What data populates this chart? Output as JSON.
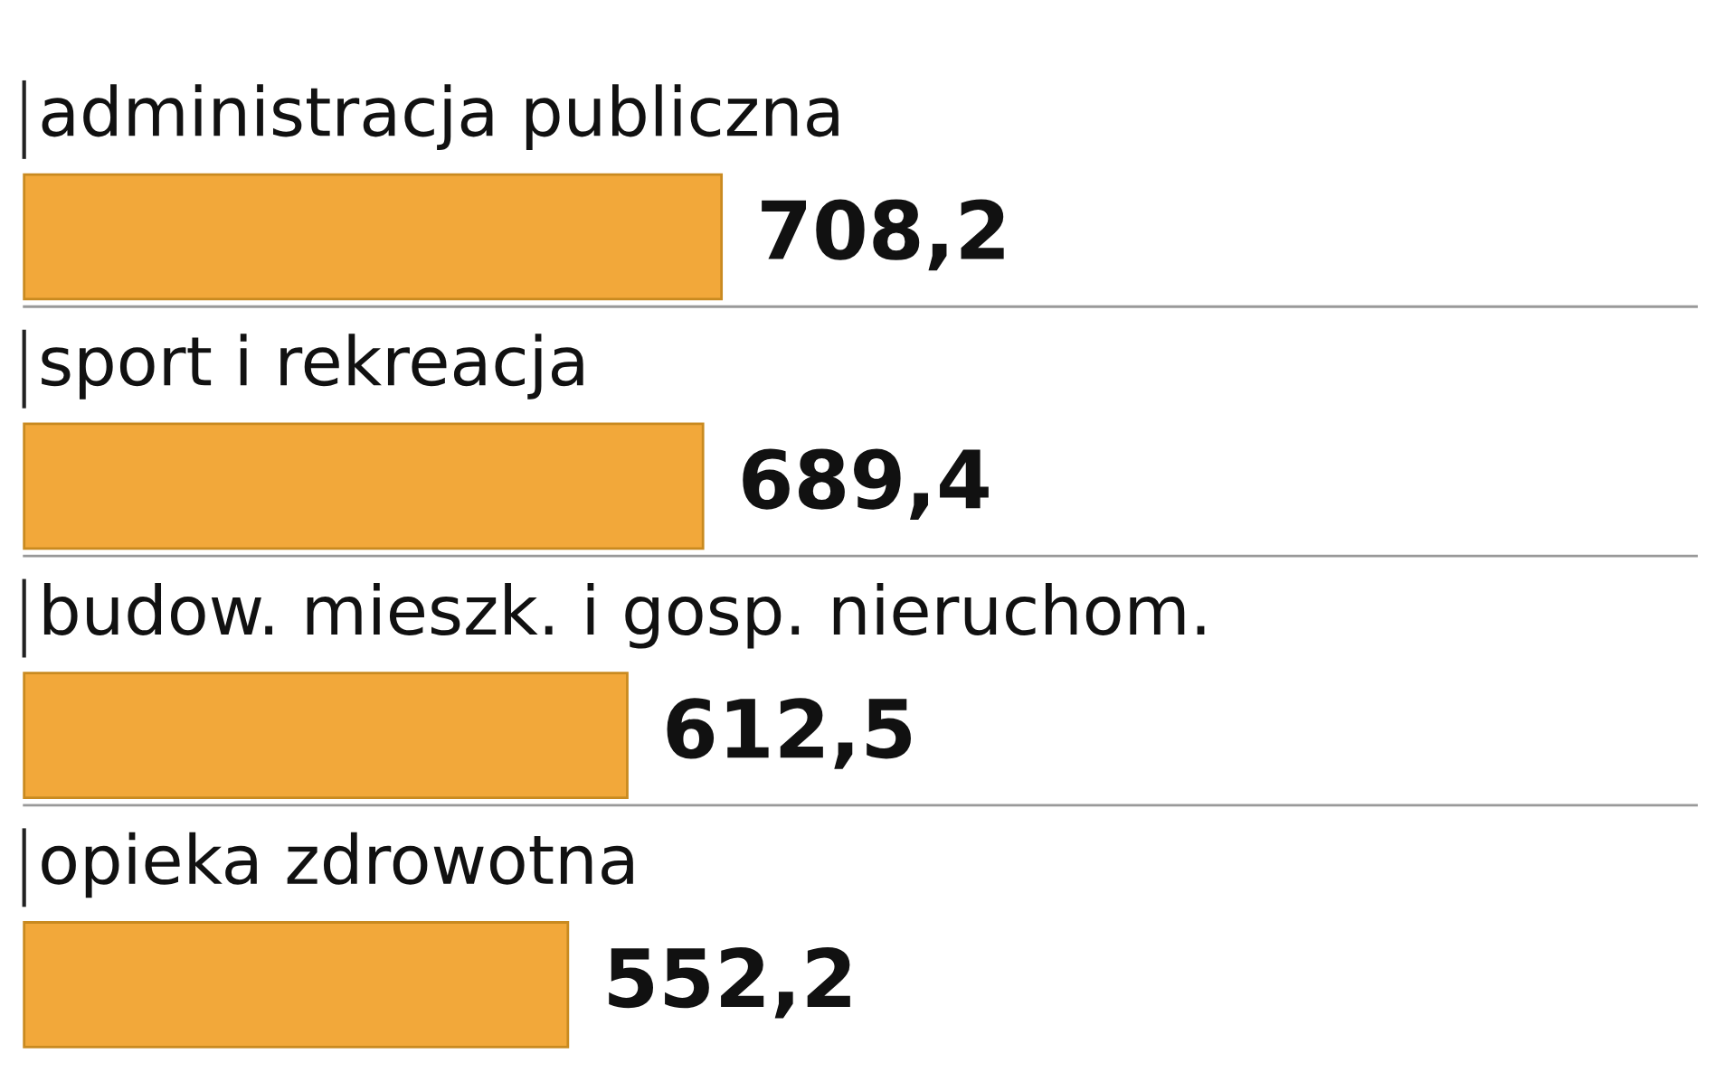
{
  "chart_data": {
    "type": "bar",
    "orientation": "horizontal",
    "categories": [
      "administracja publiczna",
      "sport i rekreacja",
      "budow. mieszk. i gosp. nieruchom.",
      "opieka zdrowotna"
    ],
    "values": [
      708.2,
      689.4,
      612.5,
      552.2
    ],
    "value_labels": [
      "708,2",
      "689,4",
      "612,5",
      "552,2"
    ],
    "color": "#f2a83a"
  }
}
